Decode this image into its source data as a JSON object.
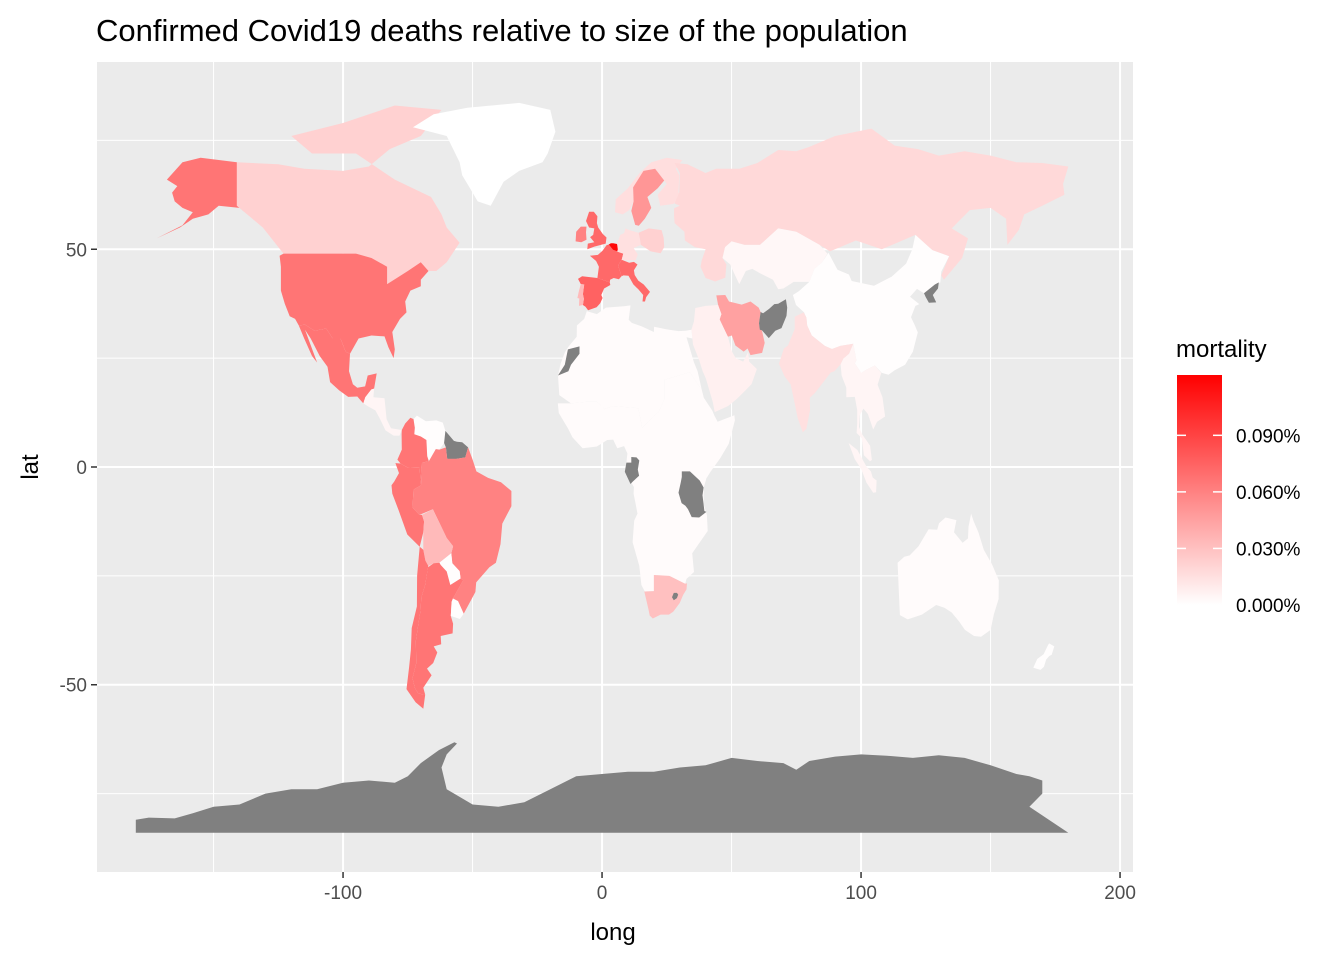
{
  "chart_data": {
    "type": "choropleth",
    "title": "Confirmed Covid19 deaths relative to size of the population",
    "xlabel": "long",
    "ylabel": "lat",
    "xlim": [
      -195,
      205
    ],
    "ylim": [
      -93,
      93
    ],
    "x_ticks": [
      -100,
      0,
      100,
      200
    ],
    "x_tick_labels": [
      "-100",
      "0",
      "100",
      "200"
    ],
    "y_ticks": [
      -50,
      0,
      50
    ],
    "y_tick_labels": [
      "-50",
      "0",
      "50"
    ],
    "grid": true,
    "legend": {
      "title": "mortality",
      "placement": "right",
      "range": [
        0,
        0.00122
      ],
      "breaks": [
        0,
        0.0003,
        0.0006,
        0.0009
      ],
      "labels": [
        "0.000%",
        "0.030%",
        "0.060%",
        "0.090%"
      ],
      "low_color": "#ffffff",
      "high_color": "#ff0000",
      "na_color": "#808080"
    },
    "regions": [
      {
        "name": "Alaska",
        "mortality": 0.00066
      },
      {
        "name": "Canada",
        "mortality": 0.00022
      },
      {
        "name": "Greenland",
        "mortality": 0.0
      },
      {
        "name": "United States",
        "mortality": 0.00066
      },
      {
        "name": "Mexico",
        "mortality": 0.00066
      },
      {
        "name": "Central America",
        "mortality": 5e-05
      },
      {
        "name": "Venezuela",
        "mortality": 1e-05
      },
      {
        "name": "Guyana",
        "mortality": null
      },
      {
        "name": "Colombia",
        "mortality": 0.00066
      },
      {
        "name": "Peru",
        "mortality": 0.00066
      },
      {
        "name": "Brazil",
        "mortality": 0.0006
      },
      {
        "name": "Bolivia",
        "mortality": 0.00033
      },
      {
        "name": "Paraguay",
        "mortality": 1e-05
      },
      {
        "name": "Argentina",
        "mortality": 0.00066
      },
      {
        "name": "Uruguay",
        "mortality": 1e-05
      },
      {
        "name": "Chile",
        "mortality": 0.00066
      },
      {
        "name": "United Kingdom",
        "mortality": 0.00072
      },
      {
        "name": "Ireland",
        "mortality": 0.0006
      },
      {
        "name": "France",
        "mortality": 0.00072
      },
      {
        "name": "Belgium",
        "mortality": 0.00118
      },
      {
        "name": "Spain",
        "mortality": 0.00075
      },
      {
        "name": "Portugal",
        "mortality": 0.00033
      },
      {
        "name": "Italy",
        "mortality": 0.00072
      },
      {
        "name": "Germany",
        "mortality": 0.00015
      },
      {
        "name": "Scandinavia",
        "mortality": 0.00016
      },
      {
        "name": "Sweden",
        "mortality": 0.0005
      },
      {
        "name": "Poland",
        "mortality": 0.00022
      },
      {
        "name": "Russia",
        "mortality": 0.00018
      },
      {
        "name": "Kazakhstan",
        "mortality": 4e-05
      },
      {
        "name": "Iran",
        "mortality": 0.00045
      },
      {
        "name": "Afghanistan",
        "mortality": null
      },
      {
        "name": "China",
        "mortality": 1e-05
      },
      {
        "name": "North Korea",
        "mortality": null
      },
      {
        "name": "India",
        "mortality": 0.00015
      },
      {
        "name": "Middle East",
        "mortality": 7e-05
      },
      {
        "name": "North Africa",
        "mortality": 2e-05
      },
      {
        "name": "Western Sahara",
        "mortality": null
      },
      {
        "name": "Sub-Saharan Africa",
        "mortality": 2e-05
      },
      {
        "name": "Gabon",
        "mortality": null
      },
      {
        "name": "Tanzania",
        "mortality": null
      },
      {
        "name": "South Africa",
        "mortality": 0.0003
      },
      {
        "name": "Lesotho",
        "mortality": null
      },
      {
        "name": "Southeast Asia",
        "mortality": 5e-05
      },
      {
        "name": "Indonesia",
        "mortality": 5e-05
      },
      {
        "name": "Australia",
        "mortality": 2e-05
      },
      {
        "name": "New Zealand",
        "mortality": 1e-05
      },
      {
        "name": "Antarctica",
        "mortality": null
      }
    ]
  }
}
